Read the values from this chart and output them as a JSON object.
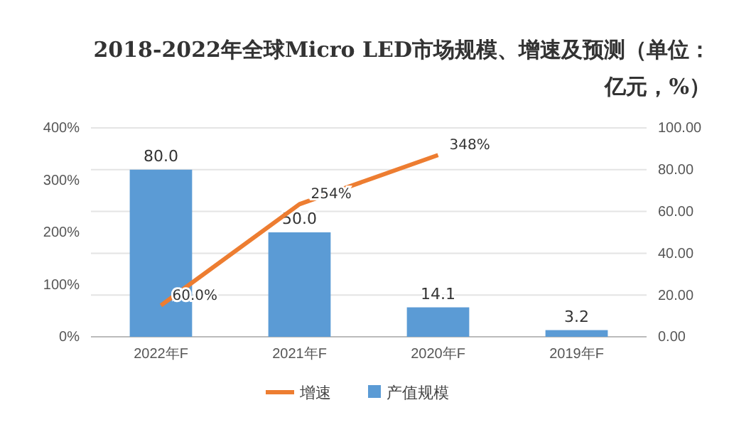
{
  "chart_data": {
    "type": "bar",
    "title": "2018-2022年全球Micro LED市场规模、增速及预测（单位：亿元，%）",
    "categories": [
      "2022年F",
      "2021年F",
      "2020年F",
      "2019年F"
    ],
    "series": [
      {
        "name": "产值规模",
        "color": "#5b9bd5",
        "values": [
          80.0,
          50.0,
          14.1,
          3.2
        ],
        "value_labels": [
          "80.0",
          "50.0",
          "14.1",
          "3.2"
        ]
      },
      {
        "name": "增速",
        "type": "line",
        "axis": "y2",
        "color": "#ed7d31",
        "values": [
          60.0,
          254,
          348,
          null
        ],
        "value_labels": [
          "60.0%",
          "254%",
          "348%",
          null
        ]
      }
    ],
    "ylim": [
      0,
      100
    ],
    "yticks": [
      {
        "value": 0,
        "label": "0.00"
      },
      {
        "value": 20,
        "label": "20.00"
      },
      {
        "value": 40,
        "label": "40.00"
      },
      {
        "value": 60,
        "label": "60.00"
      },
      {
        "value": 80,
        "label": "80.00"
      },
      {
        "value": 100,
        "label": "100.00"
      }
    ],
    "y2lim": [
      0,
      400
    ],
    "y2ticks": [
      {
        "value": 0,
        "label": "0%"
      },
      {
        "value": 100,
        "label": "100%"
      },
      {
        "value": 200,
        "label": "200%"
      },
      {
        "value": 300,
        "label": "300%"
      },
      {
        "value": 400,
        "label": "400%"
      }
    ],
    "grid": true,
    "legend": "bottom",
    "marker": "none",
    "line_style": "solid"
  }
}
